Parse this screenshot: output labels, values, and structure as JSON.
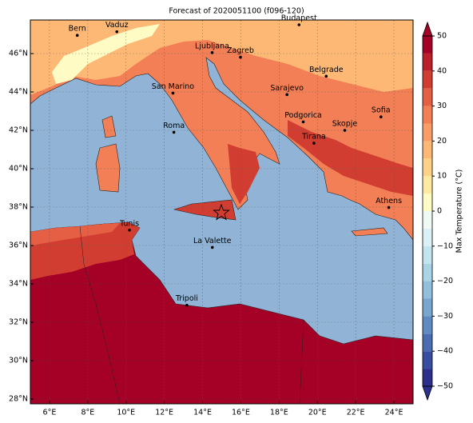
{
  "title": "Forecast of 2020051100 (f096-120)",
  "map": {
    "xlim": [
      5,
      25
    ],
    "ylim": [
      27.75,
      47.75
    ],
    "xticks": [
      {
        "value": 6,
        "label": "6°E"
      },
      {
        "value": 8,
        "label": "8°E"
      },
      {
        "value": 10,
        "label": "10°E"
      },
      {
        "value": 12,
        "label": "12°E"
      },
      {
        "value": 14,
        "label": "14°E"
      },
      {
        "value": 16,
        "label": "16°E"
      },
      {
        "value": 18,
        "label": "18°E"
      },
      {
        "value": 20,
        "label": "20°E"
      },
      {
        "value": 22,
        "label": "22°E"
      },
      {
        "value": 24,
        "label": "24°E"
      }
    ],
    "yticks": [
      {
        "value": 28,
        "label": "28°N"
      },
      {
        "value": 30,
        "label": "30°N"
      },
      {
        "value": 32,
        "label": "32°N"
      },
      {
        "value": 34,
        "label": "34°N"
      },
      {
        "value": 36,
        "label": "36°N"
      },
      {
        "value": 38,
        "label": "38°N"
      },
      {
        "value": 40,
        "label": "40°N"
      },
      {
        "value": 42,
        "label": "42°N"
      },
      {
        "value": 44,
        "label": "44°N"
      },
      {
        "value": 46,
        "label": "46°N"
      }
    ],
    "grid": true,
    "cities": [
      {
        "label": "Bern",
        "lon": 7.45,
        "lat": 46.95
      },
      {
        "label": "Vaduz",
        "lon": 9.52,
        "lat": 47.14
      },
      {
        "label": "Budapest",
        "lon": 19.04,
        "lat": 47.5
      },
      {
        "label": "Ljubljana",
        "lon": 14.5,
        "lat": 46.05
      },
      {
        "label": "Zagreb",
        "lon": 15.98,
        "lat": 45.81
      },
      {
        "label": "Belgrade",
        "lon": 20.46,
        "lat": 44.82
      },
      {
        "label": "San Marino",
        "lon": 12.45,
        "lat": 43.94
      },
      {
        "label": "Sarajevo",
        "lon": 18.41,
        "lat": 43.86
      },
      {
        "label": "Roma",
        "lon": 12.5,
        "lat": 41.9
      },
      {
        "label": "Podgorica",
        "lon": 19.26,
        "lat": 42.44
      },
      {
        "label": "Sofia",
        "lon": 23.32,
        "lat": 42.7
      },
      {
        "label": "Skopje",
        "lon": 21.43,
        "lat": 42.0
      },
      {
        "label": "Tirana",
        "lon": 19.82,
        "lat": 41.33
      },
      {
        "label": "Athens",
        "lon": 23.73,
        "lat": 37.98
      },
      {
        "label": "Tunis",
        "lon": 10.18,
        "lat": 36.8
      },
      {
        "label": "La Valette",
        "lon": 14.51,
        "lat": 35.9
      },
      {
        "label": "Tripoli",
        "lon": 13.18,
        "lat": 32.89
      }
    ]
  },
  "colorbar": {
    "label": "Max Temperature (°C)",
    "ticks": [
      {
        "value": -50,
        "label": "−50"
      },
      {
        "value": -40,
        "label": "−40"
      },
      {
        "value": -30,
        "label": "−30"
      },
      {
        "value": -20,
        "label": "−20"
      },
      {
        "value": -10,
        "label": "−10"
      },
      0,
      10,
      20,
      30,
      40,
      50
    ],
    "colors": [
      "#2c2f8c",
      "#3a4ea0",
      "#4a6cb2",
      "#5f8bc2",
      "#78a6cf",
      "#91bfdc",
      "#a9d4e6",
      "#c3e5ef",
      "#dcf1f6",
      "#effaf5",
      "#fffbc4",
      "#fee9a0",
      "#fdd186",
      "#fdb875",
      "#f99c68",
      "#f27f55",
      "#e45f43",
      "#d13e31",
      "#bb1f2b",
      "#a50026"
    ]
  }
}
